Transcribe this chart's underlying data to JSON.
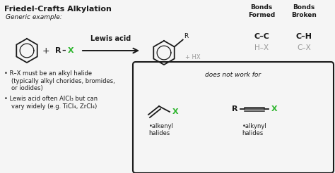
{
  "title": "Friedel-Crafts Alkylation",
  "generic_example": "Generic example:",
  "bg_color": "#f5f5f5",
  "text_color": "#1a1a1a",
  "green_color": "#2db52d",
  "gray_color": "#999999",
  "bonds_formed_label": "Bonds\nFormed",
  "bonds_broken_label": "Bonds\nBroken",
  "bonds_formed_black": "C–C",
  "bonds_broken_black": "C–H",
  "bonds_formed_gray": "H–X",
  "bonds_broken_gray": "C–X",
  "lewis_acid_label": "Lewis acid",
  "plus_hx": "+ HX",
  "bullet1_line1": "• R–X must be an alkyl halide",
  "bullet1_line2": "(typically alkyl chorides, bromides,",
  "bullet1_line3": "or iodides)",
  "bullet2_line1": "• Lewis acid often AlCl₃ but can",
  "bullet2_line2": "vary widely (e.g. TiCl₄, ZrCl₄)",
  "does_not_work": "does not work for",
  "alkenyl_label": "•alkenyl\nhalides",
  "alkynyl_label": "•alkynyl\nhalides",
  "figsize": [
    4.74,
    2.46
  ],
  "dpi": 100
}
